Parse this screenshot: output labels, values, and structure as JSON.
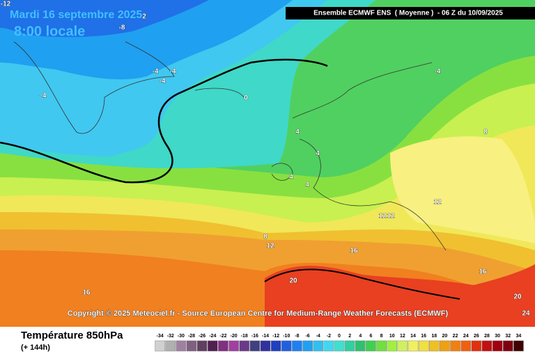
{
  "header": {
    "date": "Mardi 16 septembre 2025",
    "time": "8:00 locale",
    "model": "Ensemble ECMWF ENS  ( Moyenne )  - 06 Z du 10/09/2025"
  },
  "copyright": "Copyright © 2025 Meteociel.fr - Source European Centre for Medium-Range Weather Forecasts (ECMWF)",
  "map": {
    "contour_labels": [
      "-12",
      "-8",
      "2",
      "-4",
      "-4",
      "-4",
      "-4",
      "0",
      "-4",
      "4",
      "4",
      "4",
      "4",
      "8",
      "12",
      "12",
      "12",
      "8",
      "12",
      "16",
      "16",
      "16",
      "20",
      "20",
      "24"
    ]
  },
  "footer": {
    "title": "Température 850hPa",
    "lead": "(+ 144h)"
  },
  "colorbar": {
    "labels": [
      -34,
      -32,
      -30,
      -28,
      -26,
      -24,
      -22,
      -20,
      -18,
      -16,
      -14,
      -12,
      -10,
      -8,
      -6,
      -4,
      -2,
      0,
      2,
      4,
      6,
      8,
      10,
      12,
      14,
      16,
      18,
      20,
      22,
      24,
      26,
      28,
      30,
      32,
      34
    ],
    "colors": [
      "#d0d0d0",
      "#b0b0b0",
      "#a080a0",
      "#806080",
      "#604060",
      "#502050",
      "#803080",
      "#a040a0",
      "#6a3a8a",
      "#404080",
      "#3030a0",
      "#2040c0",
      "#2060e0",
      "#2080f0",
      "#20a0f0",
      "#30c0f0",
      "#40d8f0",
      "#40e0d0",
      "#30d0a0",
      "#30c070",
      "#40d050",
      "#70e040",
      "#a0f040",
      "#d0f060",
      "#f0f060",
      "#f0e040",
      "#f0c020",
      "#f0a010",
      "#f08010",
      "#f06010",
      "#e03010",
      "#c01010",
      "#a00010",
      "#800010",
      "#400000"
    ]
  }
}
